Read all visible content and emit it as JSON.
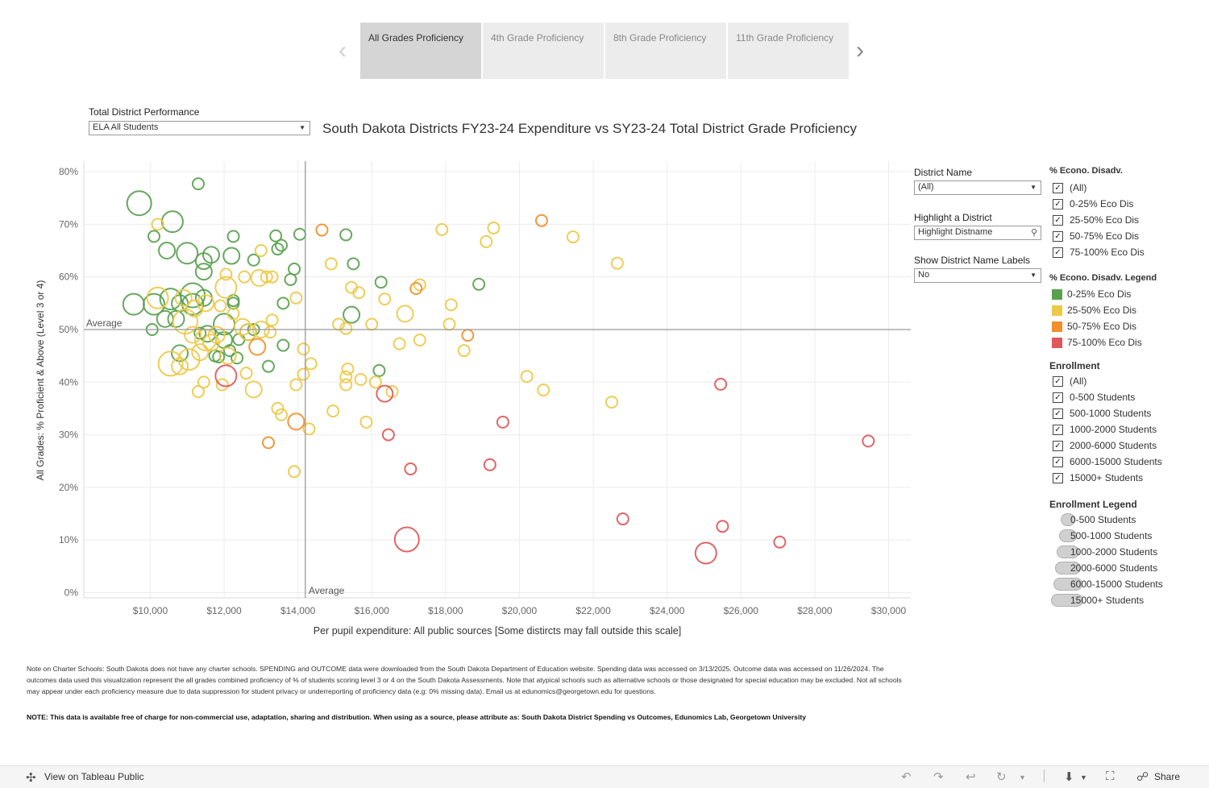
{
  "tabs": [
    {
      "label": "All Grades Proficiency",
      "active": true
    },
    {
      "label": "4th Grade Proficiency",
      "active": false
    },
    {
      "label": "8th Grade Proficiency",
      "active": false
    },
    {
      "label": "11th Grade Proficiency",
      "active": false
    }
  ],
  "filters": {
    "performance_label": "Total District Performance",
    "performance_value": "ELA All Students",
    "district_name_label": "District Name",
    "district_name_value": "(All)",
    "highlight_label": "Highlight a District",
    "highlight_placeholder": "Highlight Distname",
    "show_labels_label": "Show District Name Labels",
    "show_labels_value": "No"
  },
  "legend_econ": {
    "title": "% Econo. Disadv.",
    "items": [
      "(All)",
      "0-25% Eco Dis",
      "25-50% Eco Dis",
      "50-75% Eco Dis",
      "75-100% Eco Dis"
    ],
    "legend_title": "% Econo. Disadv. Legend",
    "legend_items": [
      {
        "label": "0-25% Eco Dis",
        "color": "#59a14f"
      },
      {
        "label": "25-50% Eco Dis",
        "color": "#edc948"
      },
      {
        "label": "50-75% Eco Dis",
        "color": "#f28e2b"
      },
      {
        "label": "75-100% Eco Dis",
        "color": "#e15759"
      }
    ]
  },
  "legend_enroll": {
    "title": "Enrollment",
    "items": [
      "(All)",
      "0-500 Students",
      "500-1000 Students",
      "1000-2000 Students",
      "2000-6000 Students",
      "6000-15000 Students",
      "15000+ Students"
    ],
    "legend_title": "Enrollment Legend",
    "legend_items": [
      "0-500 Students",
      "500-1000 Students",
      "1000-2000 Students",
      "2000-6000 Students",
      "6000-15000 Students",
      "15000+ Students"
    ]
  },
  "chart_data": {
    "type": "scatter",
    "title": "South Dakota Districts FY23-24 Expenditure vs SY23-24 Total District Grade Proficiency",
    "xlabel": "Per pupil expenditure: All public sources [Some distircts may fall outside this scale]",
    "ylabel": "All Grades: % Proficient & Above (Level 3 or 4)",
    "xlim": [
      8200,
      30600
    ],
    "ylim": [
      -1,
      82
    ],
    "x_ticks": [
      10000,
      12000,
      14000,
      16000,
      18000,
      20000,
      22000,
      24000,
      26000,
      28000,
      30000
    ],
    "x_tick_labels": [
      "$10,000",
      "$12,000",
      "$14,000",
      "$16,000",
      "$18,000",
      "$20,000",
      "$22,000",
      "$24,000",
      "$26,000",
      "$28,000",
      "$30,000"
    ],
    "y_ticks": [
      0,
      10,
      20,
      30,
      40,
      50,
      60,
      70,
      80
    ],
    "y_tick_labels": [
      "0%",
      "10%",
      "20%",
      "30%",
      "40%",
      "50%",
      "60%",
      "70%",
      "80%"
    ],
    "reference_lines": {
      "avg_x": 14200,
      "avg_y": 50,
      "avg_x_label": "Average",
      "avg_y_label": "Average"
    },
    "color_legend": {
      "g": "0-25% Eco Dis",
      "y": "25-50% Eco Dis",
      "o": "50-75% Eco Dis",
      "r": "75-100% Eco Dis"
    },
    "size_legend": {
      "1": "0-500 Students",
      "2": "500-1000 Students",
      "3": "1000-2000 Students",
      "4": "2000-6000 Students",
      "5": "6000-15000 Students",
      "6": "15000+ Students"
    },
    "points": [
      [
        9700,
        74,
        "g",
        5
      ],
      [
        11300,
        77.7,
        "g",
        2
      ],
      [
        10600,
        70.5,
        "g",
        4
      ],
      [
        10200,
        70,
        "y",
        2
      ],
      [
        10100,
        67.7,
        "g",
        2
      ],
      [
        12250,
        67.7,
        "g",
        2
      ],
      [
        10450,
        65,
        "g",
        3
      ],
      [
        11000,
        64.5,
        "g",
        4
      ],
      [
        11650,
        64.2,
        "g",
        3
      ],
      [
        12200,
        64,
        "g",
        3
      ],
      [
        11450,
        63,
        "g",
        3
      ],
      [
        11450,
        61,
        "g",
        3
      ],
      [
        12800,
        63.2,
        "g",
        2
      ],
      [
        13400,
        67.8,
        "g",
        2
      ],
      [
        13550,
        66,
        "g",
        2
      ],
      [
        13450,
        65.3,
        "g",
        2
      ],
      [
        14050,
        68.1,
        "g",
        2
      ],
      [
        15300,
        68,
        "g",
        2
      ],
      [
        15500,
        62.5,
        "g",
        2
      ],
      [
        13900,
        61.5,
        "g",
        2
      ],
      [
        13800,
        59.5,
        "g",
        2
      ],
      [
        9550,
        54.8,
        "g",
        4
      ],
      [
        10100,
        54.8,
        "g",
        4
      ],
      [
        10550,
        55.8,
        "g",
        4
      ],
      [
        10800,
        55,
        "g",
        3
      ],
      [
        11150,
        56.5,
        "g",
        5
      ],
      [
        11150,
        54.8,
        "g",
        4
      ],
      [
        10400,
        52,
        "g",
        3
      ],
      [
        10700,
        52,
        "g",
        3
      ],
      [
        10050,
        50,
        "g",
        2
      ],
      [
        11450,
        56,
        "g",
        3
      ],
      [
        12250,
        55.5,
        "g",
        2
      ],
      [
        12250,
        55,
        "g",
        2
      ],
      [
        13600,
        55,
        "g",
        2
      ],
      [
        11350,
        49.3,
        "g",
        2
      ],
      [
        11550,
        49.2,
        "g",
        3
      ],
      [
        12000,
        51,
        "g",
        4
      ],
      [
        12000,
        48,
        "g",
        3
      ],
      [
        12400,
        48.1,
        "g",
        2
      ],
      [
        12800,
        50,
        "g",
        2
      ],
      [
        12650,
        49.5,
        "g",
        3
      ],
      [
        11850,
        44.8,
        "g",
        2
      ],
      [
        12150,
        46,
        "g",
        2
      ],
      [
        12350,
        44.6,
        "g",
        2
      ],
      [
        11750,
        45,
        "g",
        2
      ],
      [
        10800,
        45.5,
        "g",
        3
      ],
      [
        13600,
        47,
        "g",
        2
      ],
      [
        13200,
        43,
        "g",
        2
      ],
      [
        15450,
        52.8,
        "g",
        3
      ],
      [
        16250,
        59,
        "g",
        2
      ],
      [
        16200,
        42.2,
        "g",
        2
      ],
      [
        18900,
        58.6,
        "g",
        2
      ],
      [
        10200,
        56,
        "y",
        4
      ],
      [
        10900,
        56,
        "y",
        3
      ],
      [
        11200,
        54,
        "y",
        3
      ],
      [
        11500,
        55,
        "y",
        3
      ],
      [
        12050,
        58,
        "y",
        4
      ],
      [
        11900,
        54.5,
        "y",
        2
      ],
      [
        12050,
        60.5,
        "y",
        2
      ],
      [
        12550,
        60,
        "y",
        2
      ],
      [
        12950,
        59.8,
        "y",
        3
      ],
      [
        13150,
        60,
        "y",
        2
      ],
      [
        13300,
        60,
        "y",
        2
      ],
      [
        12250,
        53,
        "y",
        2
      ],
      [
        10950,
        51.5,
        "y",
        5
      ],
      [
        11500,
        48,
        "y",
        4
      ],
      [
        11800,
        49,
        "y",
        3
      ],
      [
        10550,
        43.5,
        "y",
        5
      ],
      [
        10800,
        43,
        "y",
        3
      ],
      [
        11050,
        44.3,
        "y",
        4
      ],
      [
        11350,
        45.7,
        "y",
        3
      ],
      [
        11650,
        47.5,
        "y",
        3
      ],
      [
        11150,
        49,
        "y",
        3
      ],
      [
        12100,
        45,
        "y",
        3
      ],
      [
        12500,
        50.5,
        "y",
        3
      ],
      [
        12650,
        49.5,
        "y",
        3
      ],
      [
        13000,
        50,
        "y",
        3
      ],
      [
        13300,
        51.8,
        "y",
        2
      ],
      [
        12600,
        41.7,
        "y",
        2
      ],
      [
        12800,
        38.6,
        "y",
        3
      ],
      [
        11450,
        40,
        "y",
        2
      ],
      [
        11300,
        38.2,
        "y",
        2
      ],
      [
        11950,
        39.5,
        "y",
        2
      ],
      [
        13450,
        35,
        "y",
        2
      ],
      [
        13550,
        33.8,
        "y",
        2
      ],
      [
        13250,
        49.5,
        "y",
        2
      ],
      [
        13000,
        65,
        "y",
        2
      ],
      [
        13950,
        56,
        "y",
        2
      ],
      [
        14150,
        46.3,
        "y",
        2
      ],
      [
        14150,
        41.5,
        "y",
        2
      ],
      [
        14350,
        43.5,
        "y",
        2
      ],
      [
        13950,
        39.5,
        "y",
        2
      ],
      [
        14300,
        31.1,
        "y",
        2
      ],
      [
        13900,
        23,
        "y",
        2
      ],
      [
        14950,
        34.5,
        "y",
        2
      ],
      [
        14900,
        62.5,
        "y",
        2
      ],
      [
        15100,
        51,
        "y",
        2
      ],
      [
        15300,
        50.2,
        "y",
        2
      ],
      [
        15350,
        42.5,
        "y",
        2
      ],
      [
        15300,
        41,
        "y",
        2
      ],
      [
        15300,
        39.5,
        "y",
        2
      ],
      [
        15450,
        58,
        "y",
        2
      ],
      [
        15650,
        57,
        "y",
        2
      ],
      [
        15700,
        40.5,
        "y",
        2
      ],
      [
        15850,
        32.4,
        "y",
        2
      ],
      [
        16000,
        51,
        "y",
        2
      ],
      [
        16100,
        40,
        "y",
        2
      ],
      [
        16350,
        55.8,
        "y",
        2
      ],
      [
        16550,
        38.2,
        "y",
        2
      ],
      [
        16900,
        53,
        "y",
        3
      ],
      [
        16750,
        47.3,
        "y",
        2
      ],
      [
        17300,
        48,
        "y",
        2
      ],
      [
        17300,
        58.5,
        "y",
        2
      ],
      [
        17900,
        69,
        "y",
        2
      ],
      [
        18150,
        54.7,
        "y",
        2
      ],
      [
        18100,
        51,
        "y",
        2
      ],
      [
        18500,
        46,
        "y",
        2
      ],
      [
        19100,
        66.7,
        "y",
        2
      ],
      [
        19300,
        69.3,
        "y",
        2
      ],
      [
        20200,
        41.1,
        "y",
        2
      ],
      [
        20650,
        38.5,
        "y",
        2
      ],
      [
        21450,
        67.6,
        "y",
        2
      ],
      [
        22500,
        36.2,
        "y",
        2
      ],
      [
        22650,
        62.6,
        "y",
        2
      ],
      [
        14650,
        68.9,
        "o",
        2
      ],
      [
        12900,
        46.7,
        "o",
        3
      ],
      [
        13950,
        32.5,
        "o",
        3
      ],
      [
        13200,
        28.5,
        "o",
        2
      ],
      [
        17200,
        57.8,
        "o",
        2
      ],
      [
        18600,
        48.9,
        "o",
        2
      ],
      [
        20600,
        70.7,
        "o",
        2
      ],
      [
        12050,
        41.2,
        "r",
        4
      ],
      [
        16350,
        37.8,
        "r",
        3
      ],
      [
        16450,
        30,
        "r",
        2
      ],
      [
        17050,
        23.5,
        "r",
        2
      ],
      [
        16950,
        10.1,
        "r",
        5
      ],
      [
        19200,
        24.3,
        "r",
        2
      ],
      [
        19550,
        32.4,
        "r",
        2
      ],
      [
        22800,
        14,
        "r",
        2
      ],
      [
        25050,
        7.5,
        "r",
        4
      ],
      [
        25450,
        39.6,
        "r",
        2
      ],
      [
        25500,
        12.6,
        "r",
        2
      ],
      [
        27050,
        9.6,
        "r",
        2
      ],
      [
        29450,
        28.8,
        "r",
        2
      ]
    ]
  },
  "notes": {
    "charter_note": "Note on Charter Schools: South Dakota does not have any charter schools. SPENDING and OUTCOME data were downloaded from the South Dakota Department of Education website. Spending data was accessed on 3/13/2025. Outcome data was accessed on 11/26/2024. The outcomes data used this visualization represent the all grades combined proficiency of % of students scoring level 3 or 4 on the South Dakota Assessments. Note that atypical schools such as alternative schools or those designated for special education may be excluded. Not all schools may appear under each proficiency measure due to data suppression for student privacy or underreporting of proficiency data (e.g: 0% missing data). Email us at edunomics@georgetown.edu for questions.",
    "usage_note": "NOTE: This data is available free of charge for non-commercial use, adaptation, sharing and distribution. When using as a source, please attribute as: South Dakota District Spending vs Outcomes, Edunomics Lab, Georgetown University"
  },
  "footer": {
    "view_label": "View on Tableau Public",
    "share_label": "Share",
    "icons": [
      "undo-icon",
      "redo-icon",
      "revert-icon",
      "refresh-icon",
      "download-icon",
      "fullscreen-icon",
      "share-icon"
    ]
  }
}
